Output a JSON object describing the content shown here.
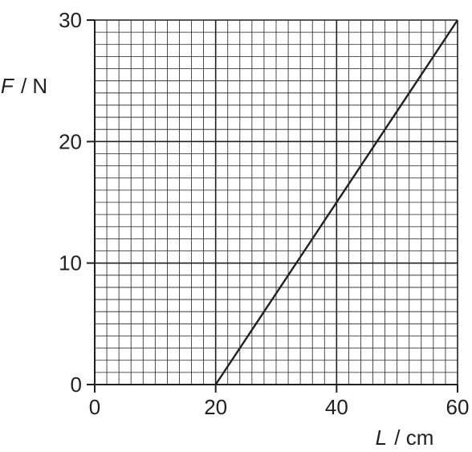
{
  "chart_data": {
    "type": "line",
    "xlabel": {
      "var": "L",
      "unit": "cm"
    },
    "ylabel": {
      "var": "F",
      "unit": "N"
    },
    "xlim": [
      0,
      60
    ],
    "ylim": [
      0,
      30
    ],
    "x_ticks": [
      "0",
      "20",
      "40",
      "60"
    ],
    "y_ticks": [
      "0",
      "10",
      "20",
      "30"
    ],
    "x_tick_values": [
      0,
      20,
      40,
      60
    ],
    "y_tick_values": [
      0,
      10,
      20,
      30
    ],
    "grid": {
      "minor_step_x": 2,
      "minor_step_y": 1,
      "major_step_x": 20,
      "major_step_y": 10
    },
    "series": [
      {
        "x": [
          20,
          60
        ],
        "y": [
          0,
          30
        ]
      }
    ],
    "color": "#231f20"
  }
}
